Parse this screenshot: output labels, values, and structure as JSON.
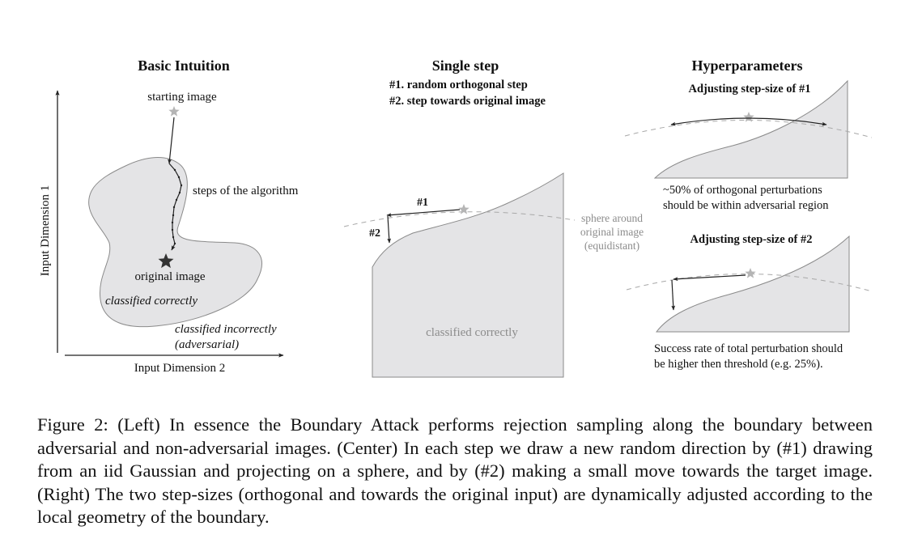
{
  "panels": {
    "left": {
      "title": "Basic Intuition",
      "starting_image": "starting image",
      "steps_label": "steps of the algorithm",
      "original_image": "original image",
      "classified_correctly": "classified correctly",
      "classified_incorrectly_1": "classified incorrectly",
      "classified_incorrectly_2": "(adversarial)",
      "x_axis": "Input Dimension 2",
      "y_axis": "Input Dimension 1"
    },
    "center": {
      "title": "Single step",
      "subtitle_1": "#1. random orthogonal step",
      "subtitle_2": "#2. step towards original image",
      "label_step1": "#1",
      "label_step2": "#2",
      "sphere_1": "sphere around",
      "sphere_2": "original image",
      "sphere_3": "(equidistant)",
      "classified_correctly": "classified correctly"
    },
    "right": {
      "title": "Hyperparameters",
      "sub1_title": "Adjusting step-size of #1",
      "sub1_caption_1": "~50% of orthogonal perturbations",
      "sub1_caption_2": "should be within adversarial region",
      "sub2_title": "Adjusting step-size of #2",
      "sub2_caption_1": "Success rate of total perturbation should",
      "sub2_caption_2": "be higher then threshold (e.g. 25%)."
    }
  },
  "caption": "Figure 2: (Left) In essence the Boundary Attack performs rejection sampling along the boundary between adversarial and non-adversarial images. (Center) In each step we draw a new random direction by (#1) drawing from an iid Gaussian and projecting on a sphere, and by (#2) making a small move towards the target image. (Right) The two step-sizes (orthogonal and towards the original input) are dynamically adjusted according to the local geometry of the boundary.",
  "colors": {
    "region_fill": "#e4e4e6",
    "region_stroke": "#8a8a8a",
    "dashed": "#a8a8a8",
    "star_light": "#b5b5b5",
    "star_dark": "#333333",
    "text": "#111111",
    "gray_text": "#8c8c8c"
  }
}
